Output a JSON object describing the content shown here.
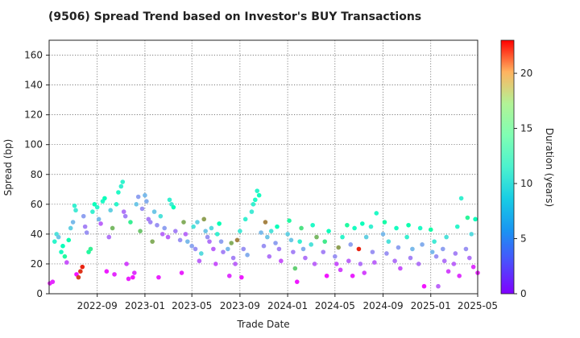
{
  "chart_data": {
    "type": "scatter",
    "title": "(9506)   Spread Trend based on Investor's BUY Transactions",
    "xlabel": "Trade Date",
    "ylabel": "Spread (bp)",
    "ylim": [
      0,
      170
    ],
    "xlim": [
      "2022-05-01",
      "2025-05-01"
    ],
    "yticks": [
      0,
      20,
      40,
      60,
      80,
      100,
      120,
      140,
      160
    ],
    "xticks": [
      "2022-09",
      "2023-01",
      "2023-05",
      "2023-09",
      "2024-01",
      "2024-05",
      "2024-09",
      "2025-01",
      "2025-05"
    ],
    "grid": true,
    "colorbar": {
      "label": "Duration (years)",
      "range": [
        0,
        23
      ],
      "ticks": [
        0,
        5,
        10,
        15,
        20
      ],
      "colormap": "rainbow"
    },
    "points": [
      [
        "2022-05-03",
        7,
        1.0
      ],
      [
        "2022-05-10",
        8,
        1.2
      ],
      [
        "2022-05-15",
        35,
        9.5
      ],
      [
        "2022-05-20",
        40,
        8.0
      ],
      [
        "2022-05-25",
        38,
        6.5
      ],
      [
        "2022-06-01",
        28,
        10.5
      ],
      [
        "2022-06-05",
        32,
        11.0
      ],
      [
        "2022-06-10",
        25,
        13.0
      ],
      [
        "2022-06-15",
        21,
        2.5
      ],
      [
        "2022-06-20",
        36,
        12.0
      ],
      [
        "2022-06-25",
        44,
        7.0
      ],
      [
        "2022-07-01",
        48,
        6.0
      ],
      [
        "2022-07-05",
        59,
        9.0
      ],
      [
        "2022-07-08",
        56,
        8.5
      ],
      [
        "2022-07-10",
        13,
        0.5
      ],
      [
        "2022-07-15",
        11,
        21.0
      ],
      [
        "2022-07-20",
        15,
        21.5
      ],
      [
        "2022-07-25",
        18,
        22.0
      ],
      [
        "2022-07-28",
        52,
        5.0
      ],
      [
        "2022-08-01",
        45,
        4.0
      ],
      [
        "2022-08-05",
        41,
        4.5
      ],
      [
        "2022-08-10",
        28,
        13.0
      ],
      [
        "2022-08-15",
        30,
        14.0
      ],
      [
        "2022-08-20",
        55,
        9.0
      ],
      [
        "2022-08-25",
        60,
        11.0
      ],
      [
        "2022-09-01",
        58,
        9.5
      ],
      [
        "2022-09-05",
        50,
        6.0
      ],
      [
        "2022-09-10",
        47,
        3.0
      ],
      [
        "2022-09-15",
        62,
        10.0
      ],
      [
        "2022-09-20",
        64,
        11.0
      ],
      [
        "2022-09-25",
        15,
        0.8
      ],
      [
        "2022-10-01",
        38,
        3.5
      ],
      [
        "2022-10-05",
        56,
        7.0
      ],
      [
        "2022-10-10",
        44,
        17.0
      ],
      [
        "2022-10-15",
        13,
        1.2
      ],
      [
        "2022-10-20",
        60,
        9.5
      ],
      [
        "2022-10-25",
        68,
        10.0
      ],
      [
        "2022-11-01",
        72,
        9.0
      ],
      [
        "2022-11-05",
        75,
        9.3
      ],
      [
        "2022-11-08",
        55,
        3.5
      ],
      [
        "2022-11-12",
        52,
        4.0
      ],
      [
        "2022-11-15",
        20,
        2.0
      ],
      [
        "2022-11-20",
        10,
        1.0
      ],
      [
        "2022-11-25",
        48,
        14.0
      ],
      [
        "2022-12-01",
        11,
        0.6
      ],
      [
        "2022-12-05",
        14,
        1.5
      ],
      [
        "2022-12-10",
        60,
        6.5
      ],
      [
        "2022-12-15",
        65,
        5.0
      ],
      [
        "2022-12-20",
        42,
        16.5
      ],
      [
        "2022-12-25",
        57,
        4.5
      ],
      [
        "2023-01-01",
        66,
        6.0
      ],
      [
        "2023-01-05",
        62,
        5.5
      ],
      [
        "2023-01-10",
        50,
        3.8
      ],
      [
        "2023-01-15",
        48,
        4.2
      ],
      [
        "2023-01-20",
        35,
        17.5
      ],
      [
        "2023-01-25",
        55,
        6.5
      ],
      [
        "2023-02-01",
        46,
        4.5
      ],
      [
        "2023-02-05",
        11,
        1.0
      ],
      [
        "2023-02-10",
        52,
        8.0
      ],
      [
        "2023-02-15",
        40,
        3.2
      ],
      [
        "2023-02-20",
        44,
        5.0
      ],
      [
        "2023-03-01",
        38,
        3.0
      ],
      [
        "2023-03-05",
        63,
        9.0
      ],
      [
        "2023-03-10",
        60,
        8.5
      ],
      [
        "2023-03-15",
        58,
        11.0
      ],
      [
        "2023-03-20",
        42,
        4.0
      ],
      [
        "2023-04-01",
        36,
        4.5
      ],
      [
        "2023-04-05",
        14,
        1.0
      ],
      [
        "2023-04-10",
        48,
        17.5
      ],
      [
        "2023-04-15",
        40,
        3.2
      ],
      [
        "2023-04-20",
        35,
        6.0
      ],
      [
        "2023-05-01",
        32,
        5.2
      ],
      [
        "2023-05-05",
        45,
        8.0
      ],
      [
        "2023-05-10",
        30,
        4.5
      ],
      [
        "2023-05-15",
        48,
        7.0
      ],
      [
        "2023-05-20",
        22,
        3.0
      ],
      [
        "2023-05-25",
        27,
        7.5
      ],
      [
        "2023-06-01",
        50,
        18.0
      ],
      [
        "2023-06-05",
        42,
        6.5
      ],
      [
        "2023-06-10",
        38,
        4.5
      ],
      [
        "2023-06-15",
        35,
        3.5
      ],
      [
        "2023-06-20",
        44,
        7.5
      ],
      [
        "2023-06-25",
        30,
        3.0
      ],
      [
        "2023-07-01",
        20,
        2.5
      ],
      [
        "2023-07-05",
        40,
        9.0
      ],
      [
        "2023-07-10",
        47,
        11.5
      ],
      [
        "2023-07-15",
        35,
        5.0
      ],
      [
        "2023-07-20",
        28,
        4.0
      ],
      [
        "2023-08-01",
        30,
        6.0
      ],
      [
        "2023-08-05",
        12,
        1.5
      ],
      [
        "2023-08-10",
        34,
        17.5
      ],
      [
        "2023-08-15",
        24,
        4.0
      ],
      [
        "2023-08-20",
        20,
        3.0
      ],
      [
        "2023-08-25",
        36,
        19.0
      ],
      [
        "2023-09-01",
        42,
        8.5
      ],
      [
        "2023-09-05",
        11,
        0.8
      ],
      [
        "2023-09-10",
        30,
        4.5
      ],
      [
        "2023-09-15",
        50,
        9.0
      ],
      [
        "2023-09-20",
        26,
        5.5
      ],
      [
        "2023-10-01",
        55,
        8.5
      ],
      [
        "2023-10-05",
        60,
        9.0
      ],
      [
        "2023-10-10",
        63,
        10.0
      ],
      [
        "2023-10-15",
        69,
        9.5
      ],
      [
        "2023-10-20",
        66,
        10.5
      ],
      [
        "2023-10-25",
        41,
        6.0
      ],
      [
        "2023-11-01",
        32,
        4.5
      ],
      [
        "2023-11-05",
        48,
        19.0
      ],
      [
        "2023-11-10",
        38,
        6.5
      ],
      [
        "2023-11-15",
        25,
        3.5
      ],
      [
        "2023-11-20",
        42,
        8.0
      ],
      [
        "2023-12-01",
        34,
        5.0
      ],
      [
        "2023-12-05",
        45,
        11.0
      ],
      [
        "2023-12-10",
        30,
        4.0
      ],
      [
        "2023-12-15",
        22,
        2.5
      ],
      [
        "2024-01-01",
        40,
        7.0
      ],
      [
        "2024-01-05",
        49,
        13.0
      ],
      [
        "2024-01-10",
        36,
        6.5
      ],
      [
        "2024-01-15",
        28,
        4.0
      ],
      [
        "2024-01-20",
        17,
        16.0
      ],
      [
        "2024-01-25",
        8,
        0.7
      ],
      [
        "2024-02-01",
        35,
        9.0
      ],
      [
        "2024-02-05",
        44,
        15.0
      ],
      [
        "2024-02-10",
        30,
        5.5
      ],
      [
        "2024-02-15",
        24,
        3.5
      ],
      [
        "2024-03-01",
        33,
        8.0
      ],
      [
        "2024-03-05",
        46,
        10.0
      ],
      [
        "2024-03-10",
        20,
        3.0
      ],
      [
        "2024-03-15",
        38,
        17.0
      ],
      [
        "2024-04-01",
        28,
        4.0
      ],
      [
        "2024-04-05",
        35,
        14.5
      ],
      [
        "2024-04-10",
        12,
        0.6
      ],
      [
        "2024-04-15",
        42,
        11.0
      ],
      [
        "2024-05-01",
        25,
        4.5
      ],
      [
        "2024-05-05",
        20,
        2.5
      ],
      [
        "2024-05-10",
        31,
        18.0
      ],
      [
        "2024-05-15",
        16,
        2.0
      ],
      [
        "2024-05-20",
        38,
        9.5
      ],
      [
        "2024-06-01",
        46,
        13.0
      ],
      [
        "2024-06-05",
        22,
        3.0
      ],
      [
        "2024-06-10",
        33,
        5.0
      ],
      [
        "2024-06-15",
        12,
        1.0
      ],
      [
        "2024-06-20",
        44,
        10.5
      ],
      [
        "2024-07-01",
        30,
        22.0
      ],
      [
        "2024-07-05",
        20,
        3.5
      ],
      [
        "2024-07-10",
        47,
        11.0
      ],
      [
        "2024-07-15",
        14,
        2.0
      ],
      [
        "2024-07-20",
        38,
        7.0
      ],
      [
        "2024-08-01",
        45,
        9.0
      ],
      [
        "2024-08-05",
        28,
        4.5
      ],
      [
        "2024-08-10",
        21,
        3.0
      ],
      [
        "2024-08-15",
        54,
        10.0
      ],
      [
        "2024-09-01",
        40,
        6.0
      ],
      [
        "2024-09-05",
        48,
        12.5
      ],
      [
        "2024-09-10",
        27,
        4.5
      ],
      [
        "2024-09-15",
        35,
        8.0
      ],
      [
        "2024-10-01",
        22,
        3.5
      ],
      [
        "2024-10-05",
        44,
        10.5
      ],
      [
        "2024-10-10",
        31,
        5.0
      ],
      [
        "2024-10-15",
        17,
        2.5
      ],
      [
        "2024-11-01",
        38,
        9.0
      ],
      [
        "2024-11-05",
        46,
        12.0
      ],
      [
        "2024-11-10",
        24,
        4.0
      ],
      [
        "2024-11-15",
        30,
        6.0
      ],
      [
        "2024-12-01",
        20,
        3.5
      ],
      [
        "2024-12-05",
        44,
        10.0
      ],
      [
        "2024-12-10",
        33,
        5.5
      ],
      [
        "2024-12-15",
        5,
        0.6
      ],
      [
        "2025-01-01",
        43,
        12.5
      ],
      [
        "2025-01-05",
        28,
        6.0
      ],
      [
        "2025-01-10",
        35,
        8.5
      ],
      [
        "2025-01-15",
        25,
        4.5
      ],
      [
        "2025-01-20",
        5,
        3.0
      ],
      [
        "2025-02-01",
        30,
        5.0
      ],
      [
        "2025-02-05",
        22,
        3.5
      ],
      [
        "2025-02-10",
        38,
        8.0
      ],
      [
        "2025-02-15",
        15,
        2.0
      ],
      [
        "2025-03-01",
        20,
        3.0
      ],
      [
        "2025-03-05",
        27,
        4.0
      ],
      [
        "2025-03-10",
        45,
        9.5
      ],
      [
        "2025-03-15",
        12,
        1.5
      ],
      [
        "2025-03-20",
        64,
        9.0
      ],
      [
        "2025-04-01",
        30,
        4.5
      ],
      [
        "2025-04-05",
        51,
        13.5
      ],
      [
        "2025-04-10",
        24,
        3.5
      ],
      [
        "2025-04-15",
        40,
        7.5
      ],
      [
        "2025-04-20",
        18,
        1.5
      ],
      [
        "2025-04-25",
        50,
        11.0
      ],
      [
        "2025-05-01",
        14,
        1.0
      ]
    ]
  }
}
